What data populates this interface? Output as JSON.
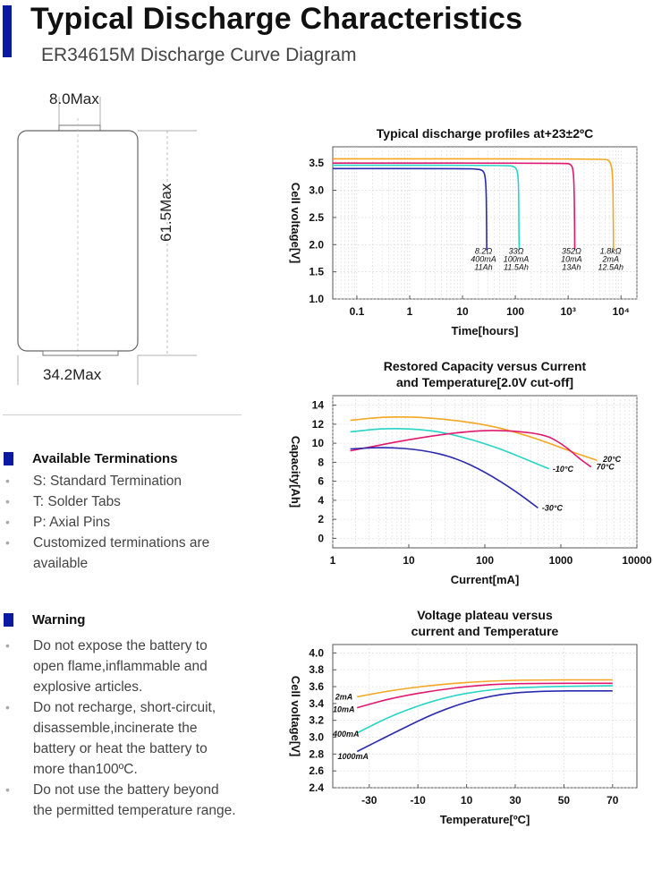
{
  "header": {
    "title": "Typical Discharge Characteristics",
    "subtitle": "ER34615M Discharge Curve Diagram"
  },
  "dimensions": {
    "top_width": "8.0Max",
    "height": "61.5Max",
    "diameter": "34.2Max"
  },
  "terminations": {
    "title": "Available Terminations",
    "items": [
      "S: Standard Termination",
      "T: Solder Tabs",
      "P: Axial Pins",
      "Customized terminations are available"
    ]
  },
  "warning": {
    "title": "Warning",
    "items": [
      "Do not expose the battery to open flame,inflammable and explosive articles.",
      "Do not recharge, short-circuit, disassemble,incinerate the battery or heat the battery to more than100ºC.",
      "Do not use the battery beyond the permitted temperature range."
    ]
  },
  "colors": {
    "accent": "#0a1a9e",
    "orange": "#f5a623",
    "magenta": "#e0196e",
    "cyan": "#26d4c6",
    "blue": "#2a2ab0"
  },
  "chart_data": [
    {
      "type": "line",
      "title": "Typical discharge profiles at+23±2ºC",
      "xlabel": "Time[hours]",
      "ylabel": "Cell voltage[V]",
      "xscale": "log",
      "xlim": [
        0.035,
        20000
      ],
      "ylim": [
        1.0,
        3.8
      ],
      "xticks": [
        {
          "v": 0.1,
          "label": "0.1"
        },
        {
          "v": 1,
          "label": "1"
        },
        {
          "v": 10,
          "label": "10"
        },
        {
          "v": 100,
          "label": "100"
        },
        {
          "v": 1000,
          "label": "10³"
        },
        {
          "v": 10000,
          "label": "10⁴"
        }
      ],
      "yticks": [
        1.0,
        1.5,
        2.0,
        2.5,
        3.0,
        3.5
      ],
      "grid": true,
      "series": [
        {
          "color": "#2a2ab0",
          "annot": [
            "8.2Ω",
            "400mA",
            "11Ah"
          ],
          "annot_x": 27,
          "points": [
            [
              0.035,
              3.4
            ],
            [
              10,
              3.4
            ],
            [
              20,
              3.39
            ],
            [
              25,
              3.36
            ],
            [
              27,
              3.25
            ],
            [
              28,
              3.0
            ],
            [
              28.5,
              2.5
            ],
            [
              28.7,
              2.0
            ],
            [
              28.8,
              1.9
            ]
          ]
        },
        {
          "color": "#26d4c6",
          "annot": [
            "33Ω",
            "100mA",
            "11.5Ah"
          ],
          "annot_x": 112,
          "points": [
            [
              0.035,
              3.46
            ],
            [
              70,
              3.46
            ],
            [
              95,
              3.44
            ],
            [
              108,
              3.38
            ],
            [
              114,
              3.2
            ],
            [
              116,
              2.8
            ],
            [
              117,
              2.3
            ],
            [
              118,
              2.0
            ],
            [
              118.5,
              1.9
            ]
          ]
        },
        {
          "color": "#e0196e",
          "annot": [
            "352Ω",
            "10mA",
            "13Ah"
          ],
          "annot_x": 1250,
          "points": [
            [
              0.035,
              3.5
            ],
            [
              900,
              3.5
            ],
            [
              1120,
              3.48
            ],
            [
              1230,
              3.4
            ],
            [
              1280,
              3.2
            ],
            [
              1310,
              2.8
            ],
            [
              1325,
              2.3
            ],
            [
              1330,
              2.0
            ],
            [
              1335,
              1.9
            ]
          ]
        },
        {
          "color": "#f5a623",
          "annot": [
            "1.8kΩ",
            "2mA",
            "12.5Ah"
          ],
          "annot_x": 6900,
          "points": [
            [
              0.035,
              3.58
            ],
            [
              4800,
              3.58
            ],
            [
              6000,
              3.55
            ],
            [
              6600,
              3.45
            ],
            [
              6900,
              3.3
            ],
            [
              7050,
              3.0
            ],
            [
              7150,
              2.5
            ],
            [
              7200,
              2.0
            ],
            [
              7220,
              1.9
            ]
          ]
        }
      ]
    },
    {
      "type": "line",
      "title": "Restored Capacity versus Current and Temperature[2.0V cut-off]",
      "xlabel": "Current[mA]",
      "ylabel": "Capacity[Ah]",
      "xscale": "log",
      "xlim": [
        1,
        10000
      ],
      "ylim": [
        -1,
        15
      ],
      "xticks": [
        {
          "v": 1,
          "label": "1"
        },
        {
          "v": 10,
          "label": "10"
        },
        {
          "v": 100,
          "label": "100"
        },
        {
          "v": 1000,
          "label": "1000"
        },
        {
          "v": 10000,
          "label": "10000"
        }
      ],
      "yticks": [
        0,
        2,
        4,
        6,
        8,
        10,
        12,
        14
      ],
      "grid": true,
      "series": [
        {
          "name": "20°C",
          "color": "#f5a623",
          "label_at": [
            3300,
            8.3
          ],
          "points": [
            [
              1.7,
              12.4
            ],
            [
              5,
              12.8
            ],
            [
              20,
              12.7
            ],
            [
              100,
              12.0
            ],
            [
              300,
              11.0
            ],
            [
              700,
              10.0
            ],
            [
              1500,
              9.0
            ],
            [
              3000,
              8.2
            ]
          ]
        },
        {
          "name": "-10°C",
          "color": "#26d4c6",
          "label_at": [
            720,
            7.3
          ],
          "points": [
            [
              1.7,
              11.2
            ],
            [
              5,
              11.6
            ],
            [
              20,
              11.4
            ],
            [
              60,
              10.5
            ],
            [
              150,
              9.5
            ],
            [
              350,
              8.3
            ],
            [
              700,
              7.3
            ]
          ]
        },
        {
          "name": "70°C",
          "color": "#e0196e",
          "label_at": [
            2700,
            7.5
          ],
          "points": [
            [
              1.7,
              9.2
            ],
            [
              10,
              10.4
            ],
            [
              50,
              11.2
            ],
            [
              150,
              11.4
            ],
            [
              600,
              11.0
            ],
            [
              1100,
              9.8
            ],
            [
              1800,
              8.3
            ],
            [
              2500,
              7.5
            ]
          ]
        },
        {
          "name": "-30°C",
          "color": "#2a2ab0",
          "label_at": [
            520,
            3.2
          ],
          "points": [
            [
              1.7,
              9.4
            ],
            [
              5,
              9.6
            ],
            [
              15,
              9.3
            ],
            [
              40,
              8.5
            ],
            [
              100,
              7.0
            ],
            [
              250,
              5.0
            ],
            [
              500,
              3.2
            ]
          ]
        }
      ]
    },
    {
      "type": "line",
      "title": "Voltage plateau versus current and Temperature",
      "xlabel": "Temperature[ºC]",
      "ylabel": "Cell voltage[V]",
      "xlim": [
        -45,
        80
      ],
      "ylim": [
        2.4,
        4.1
      ],
      "xticks": [
        {
          "v": -30,
          "label": "-30"
        },
        {
          "v": -10,
          "label": "-10"
        },
        {
          "v": 10,
          "label": "10"
        },
        {
          "v": 30,
          "label": "30"
        },
        {
          "v": 50,
          "label": "50"
        },
        {
          "v": 70,
          "label": "70"
        }
      ],
      "yticks": [
        2.4,
        2.6,
        2.8,
        3.0,
        3.2,
        3.4,
        3.6,
        3.8,
        4.0
      ],
      "grid": true,
      "series": [
        {
          "name": "2mA",
          "color": "#f5a623",
          "label_at": [
            -44,
            3.48
          ],
          "points": [
            [
              -35,
              3.48
            ],
            [
              -20,
              3.56
            ],
            [
              0,
              3.63
            ],
            [
              20,
              3.67
            ],
            [
              40,
              3.68
            ],
            [
              70,
              3.68
            ]
          ]
        },
        {
          "name": "10mA",
          "color": "#e0196e",
          "label_at": [
            -45,
            3.33
          ],
          "points": [
            [
              -35,
              3.35
            ],
            [
              -20,
              3.47
            ],
            [
              0,
              3.57
            ],
            [
              20,
              3.63
            ],
            [
              40,
              3.64
            ],
            [
              70,
              3.64
            ]
          ]
        },
        {
          "name": "400mA",
          "color": "#26d4c6",
          "label_at": [
            -45,
            3.04
          ],
          "points": [
            [
              -35,
              3.05
            ],
            [
              -20,
              3.27
            ],
            [
              0,
              3.47
            ],
            [
              20,
              3.57
            ],
            [
              40,
              3.6
            ],
            [
              70,
              3.61
            ]
          ]
        },
        {
          "name": "1000mA",
          "color": "#2a2ab0",
          "label_at": [
            -43,
            2.77
          ],
          "points": [
            [
              -35,
              2.83
            ],
            [
              -20,
              3.05
            ],
            [
              0,
              3.33
            ],
            [
              20,
              3.5
            ],
            [
              40,
              3.55
            ],
            [
              70,
              3.55
            ]
          ]
        }
      ]
    }
  ]
}
